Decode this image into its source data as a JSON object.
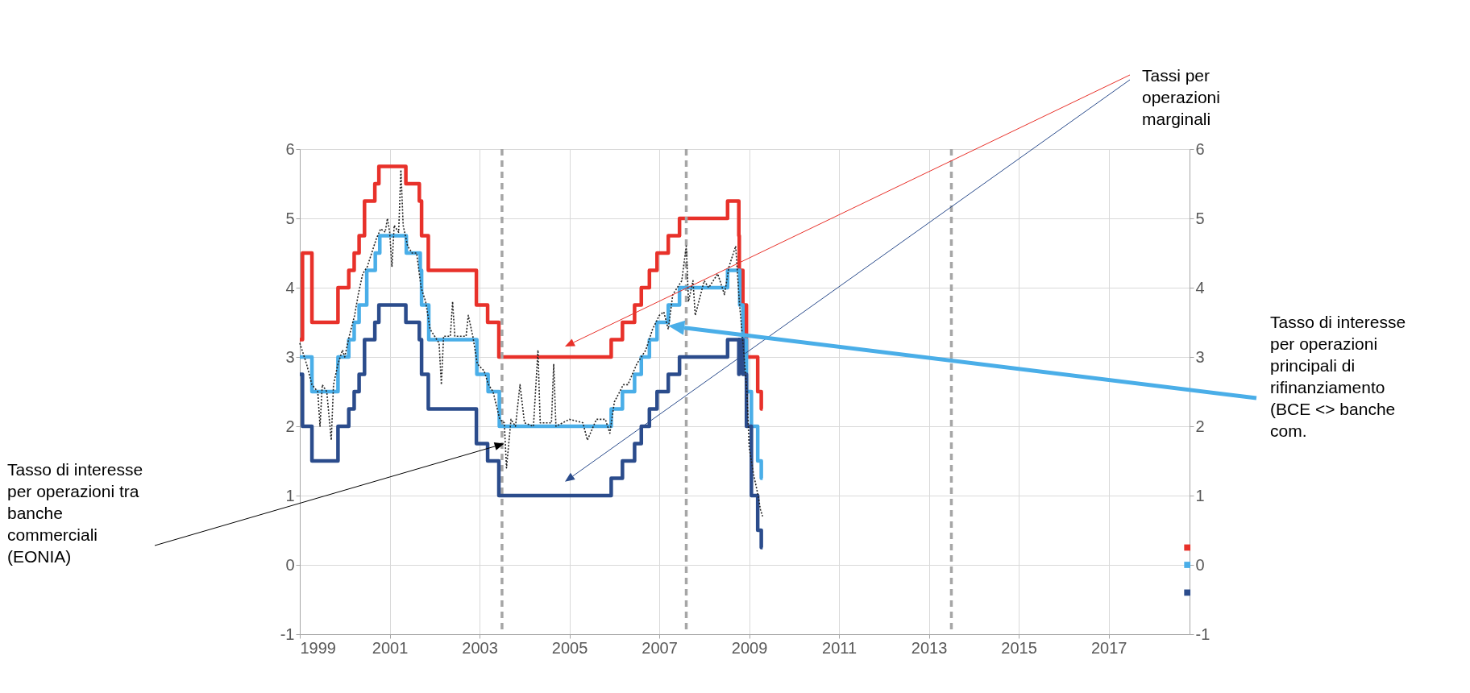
{
  "chart_data": {
    "type": "step",
    "xlim": [
      1999,
      2018.8
    ],
    "xticks": [
      1999,
      2001,
      2003,
      2005,
      2007,
      2009,
      2011,
      2013,
      2015,
      2017
    ],
    "ylim": [
      -1,
      6
    ],
    "yticks": [
      -1,
      0,
      1,
      2,
      3,
      4,
      5,
      6
    ],
    "y2lim": [
      -1,
      6
    ],
    "y2ticks": [
      -1,
      0,
      1,
      2,
      3,
      4,
      5,
      6
    ],
    "grid": true,
    "series": [
      {
        "color": "#e8312a",
        "x": [
          1999,
          1999.06,
          1999.27,
          1999.85,
          2000.09,
          2000.21,
          2000.32,
          2000.44,
          2000.67,
          2000.76,
          2001.36,
          2001.66,
          2001.71,
          2001.86,
          2002.93,
          2003.18,
          2003.43,
          2005.93,
          2006.18,
          2006.45,
          2006.6,
          2006.78,
          2006.95,
          2007.2,
          2007.45,
          2008.52,
          2008.77,
          2008.78,
          2008.86,
          2008.94,
          2009.19,
          2009.27,
          2009.3
        ],
        "values": [
          3.25,
          4.5,
          3.5,
          4.0,
          4.25,
          4.5,
          4.75,
          5.25,
          5.5,
          5.75,
          5.5,
          5.25,
          4.75,
          4.25,
          3.75,
          3.5,
          3.0,
          3.25,
          3.5,
          3.75,
          4.0,
          4.25,
          4.5,
          4.75,
          5.0,
          5.25,
          4.75,
          4.25,
          3.75,
          3.0,
          2.5,
          2.25,
          2.25
        ]
      },
      {
        "color": "#4aaee8",
        "x": [
          1999,
          1999.27,
          1999.85,
          2000.09,
          2000.21,
          2000.32,
          2000.49,
          2000.68,
          2000.78,
          2001.37,
          2001.68,
          2001.71,
          2001.87,
          2002.94,
          2003.19,
          2003.44,
          2005.93,
          2006.18,
          2006.45,
          2006.6,
          2006.78,
          2006.95,
          2007.2,
          2007.45,
          2008.52,
          2008.79,
          2008.86,
          2008.94,
          2009.05,
          2009.19,
          2009.27,
          2009.3
        ],
        "values": [
          3.0,
          2.5,
          3.0,
          3.25,
          3.5,
          3.75,
          4.25,
          4.5,
          4.75,
          4.5,
          4.25,
          3.75,
          3.25,
          2.75,
          2.5,
          2.0,
          2.25,
          2.5,
          2.75,
          3.0,
          3.25,
          3.5,
          3.75,
          4.0,
          4.25,
          3.75,
          3.25,
          2.5,
          2.0,
          1.5,
          1.25,
          1.25
        ]
      },
      {
        "color": "#2b4c8c",
        "x": [
          1999,
          1999.06,
          1999.27,
          1999.85,
          2000.09,
          2000.21,
          2000.32,
          2000.44,
          2000.67,
          2000.76,
          2001.36,
          2001.66,
          2001.71,
          2001.86,
          2002.93,
          2003.18,
          2003.43,
          2005.93,
          2006.18,
          2006.45,
          2006.6,
          2006.78,
          2006.95,
          2007.2,
          2007.45,
          2008.52,
          2008.77,
          2008.78,
          2008.86,
          2008.94,
          2009.05,
          2009.19,
          2009.27,
          2009.3
        ],
        "values": [
          2.75,
          2.0,
          1.5,
          2.0,
          2.25,
          2.5,
          2.75,
          3.25,
          3.5,
          3.75,
          3.5,
          3.25,
          2.75,
          2.25,
          1.75,
          1.5,
          1.0,
          1.25,
          1.5,
          1.75,
          2.0,
          2.25,
          2.5,
          2.75,
          3.0,
          3.25,
          2.75,
          3.25,
          2.75,
          2.0,
          1.0,
          0.5,
          0.25,
          0.25
        ]
      },
      {
        "type": "line",
        "line_style": "dotted",
        "color": "#222222",
        "x": [
          1999.0,
          1999.05,
          1999.15,
          1999.27,
          1999.4,
          1999.45,
          1999.5,
          1999.6,
          1999.7,
          1999.75,
          1999.85,
          1999.95,
          2000.0,
          2000.1,
          2000.22,
          2000.3,
          2000.4,
          2000.5,
          2000.6,
          2000.7,
          2000.8,
          2000.9,
          2000.95,
          2001.0,
          2001.05,
          2001.1,
          2001.2,
          2001.25,
          2001.3,
          2001.4,
          2001.5,
          2001.6,
          2001.7,
          2001.8,
          2001.9,
          2002.0,
          2002.1,
          2002.15,
          2002.2,
          2002.35,
          2002.4,
          2002.45,
          2002.7,
          2002.75,
          2002.85,
          2002.95,
          2003.1,
          2003.2,
          2003.3,
          2003.45,
          2003.55,
          2003.6,
          2003.7,
          2003.8,
          2003.9,
          2004.0,
          2004.2,
          2004.3,
          2004.35,
          2004.6,
          2004.65,
          2004.7,
          2005.0,
          2005.3,
          2005.4,
          2005.6,
          2005.8,
          2005.9,
          2006.0,
          2006.2,
          2006.3,
          2006.5,
          2006.7,
          2006.85,
          2007.0,
          2007.1,
          2007.2,
          2007.3,
          2007.5,
          2007.6,
          2007.65,
          2007.75,
          2007.8,
          2008.0,
          2008.1,
          2008.3,
          2008.45,
          2008.55,
          2008.7,
          2008.78,
          2008.85,
          2008.95,
          2009.0,
          2009.1,
          2009.2,
          2009.25,
          2009.3
        ],
        "values": [
          3.2,
          3.1,
          2.9,
          2.6,
          2.5,
          2.0,
          2.6,
          2.5,
          1.8,
          2.6,
          2.9,
          3.1,
          3.0,
          3.3,
          3.6,
          3.9,
          4.2,
          4.3,
          4.5,
          4.7,
          4.85,
          4.8,
          5.0,
          4.8,
          4.3,
          4.9,
          4.8,
          5.7,
          4.9,
          4.6,
          4.5,
          4.5,
          4.0,
          3.8,
          3.4,
          3.3,
          3.2,
          2.6,
          3.3,
          3.3,
          3.8,
          3.3,
          3.3,
          3.6,
          3.3,
          2.9,
          2.8,
          2.6,
          2.5,
          2.1,
          2.05,
          1.4,
          2.1,
          2.0,
          2.6,
          2.05,
          2.0,
          3.1,
          2.05,
          2.05,
          2.9,
          2.0,
          2.1,
          2.05,
          1.8,
          2.1,
          2.1,
          1.9,
          2.35,
          2.6,
          2.6,
          2.9,
          3.1,
          3.4,
          3.6,
          3.65,
          3.4,
          3.9,
          4.1,
          4.6,
          3.8,
          4.1,
          3.6,
          4.1,
          4.0,
          4.2,
          3.9,
          4.3,
          4.6,
          3.8,
          3.3,
          2.5,
          1.7,
          1.3,
          1.0,
          0.8,
          0.7
        ]
      },
      {
        "type": "scatter",
        "axis": "y2",
        "marker": "square",
        "x": [
          2018.75,
          2018.75,
          2018.75
        ],
        "values": [
          0.25,
          0,
          -0.4
        ],
        "colors": [
          "#e8312a",
          "#4aaee8",
          "#2b4c8c"
        ]
      }
    ],
    "ref_lines": [
      {
        "axis": "x",
        "value": 2003.5,
        "color": "#a6a6a6",
        "line_style": "dashed"
      },
      {
        "axis": "x",
        "value": 2007.6,
        "color": "#a6a6a6",
        "line_style": "dashed"
      },
      {
        "axis": "x",
        "value": 2013.5,
        "color": "#a6a6a6",
        "line_style": "dashed"
      }
    ],
    "annotations": [
      "Tassi per operazioni marginali",
      "Tasso di interesse per operazioni principali di rifinanziamento (BCE <> banche com.",
      "Tasso di interesse per operazioni tra banche commerciali (EONIA)"
    ]
  }
}
